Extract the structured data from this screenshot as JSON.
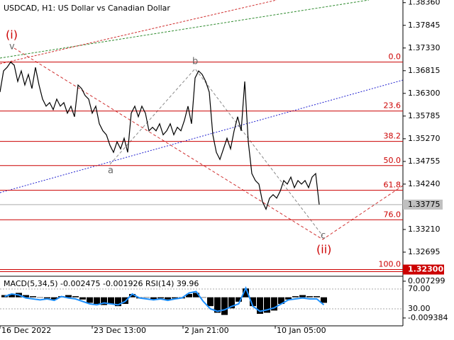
{
  "chart_data": [
    {
      "type": "line",
      "title": "USDCAD, H1:  US Dollar vs Canadian Dollar",
      "color": "#000000",
      "values": [
        1.3633,
        1.3681,
        1.3689,
        1.3701,
        1.3694,
        1.3657,
        1.3681,
        1.3649,
        1.3673,
        1.3641,
        1.3689,
        1.3649,
        1.3617,
        1.3601,
        1.3609,
        1.3593,
        1.3617,
        1.3601,
        1.3609,
        1.3585,
        1.3601,
        1.3577,
        1.3649,
        1.3641,
        1.3625,
        1.3617,
        1.3585,
        1.3601,
        1.3561,
        1.3545,
        1.3536,
        1.3512,
        1.3496,
        1.352,
        1.3504,
        1.3528,
        1.3496,
        1.3585,
        1.3601,
        1.3577,
        1.3601,
        1.3585,
        1.3545,
        1.3553,
        1.3545,
        1.3561,
        1.3536,
        1.3545,
        1.3561,
        1.3536,
        1.3553,
        1.3545,
        1.3569,
        1.3601,
        1.3561,
        1.3665,
        1.3681,
        1.3673,
        1.3657,
        1.3633,
        1.3536,
        1.3496,
        1.348,
        1.3504,
        1.3528,
        1.3504,
        1.3545,
        1.3577,
        1.3545,
        1.3657,
        1.352,
        1.3448,
        1.3432,
        1.3424,
        1.3384,
        1.3367,
        1.3392,
        1.34,
        1.3392,
        1.3408,
        1.3432,
        1.3424,
        1.344,
        1.3416,
        1.3432,
        1.3424,
        1.3432,
        1.3416,
        1.344,
        1.3448,
        1.33775
      ],
      "xlim": [
        0,
        113.6
      ],
      "ylim": [
        1.3218,
        1.3842
      ],
      "xticks": [
        {
          "value": 0,
          "label": "16 Dec 2022"
        },
        {
          "value": 26,
          "label": "23 Dec 13:00"
        },
        {
          "value": 51.6,
          "label": "2 Jan 21:00"
        },
        {
          "value": 77.6,
          "label": "10 Jan 05:00"
        }
      ],
      "yticks": [
        {
          "value": 1.3836,
          "label": "1.38360"
        },
        1.37845,
        {
          "value": 1.3733,
          "label": "1.37330"
        },
        1.36815,
        {
          "value": 1.363,
          "label": "1.36300"
        },
        1.35785,
        {
          "value": 1.3527,
          "label": "1.35270"
        },
        1.34755,
        {
          "value": 1.3424,
          "label": "1.34240"
        },
        {
          "value": 1.3321,
          "label": "1.33210"
        },
        1.32695
      ],
      "last_price": {
        "value": 1.33775,
        "label": "1.33775"
      },
      "level_marker": {
        "value": 1.323,
        "label": "1.32300"
      },
      "levels": [
        {
          "label": "0.0",
          "value": 1.3701
        },
        {
          "label": "23.6",
          "value": 1.359
        },
        {
          "label": "38.2",
          "value": 1.3521
        },
        {
          "label": "50.0",
          "value": 1.3466
        },
        {
          "label": "61.8",
          "value": 1.341
        },
        {
          "label": "76.0",
          "value": 1.3343
        },
        {
          "label": "100.0",
          "value": 1.323
        }
      ],
      "level_color": "#cc0000",
      "annotations": [
        "(i)",
        "v",
        "a",
        "b",
        "c",
        "(ii)"
      ]
    },
    {
      "type": "bar",
      "title": "MACD(5,34,5) -0.002475 -0.001926 RSI(14) 39.96",
      "color": "#000000",
      "values": [
        0.001,
        0.0015,
        0.002,
        0.001,
        0.0005,
        0,
        -0.0005,
        -0.001,
        0.0005,
        0.001,
        0.0005,
        -0.001,
        -0.0025,
        -0.003,
        -0.0035,
        -0.003,
        -0.004,
        -0.003,
        0.0015,
        -0.0005,
        0,
        -0.001,
        -0.0005,
        -0.001,
        -0.0005,
        -0.0005,
        0.0015,
        0.002,
        0,
        -0.004,
        -0.007,
        -0.008,
        -0.005,
        -0.002,
        0.004,
        -0.004,
        -0.0075,
        -0.007,
        -0.006,
        -0.003,
        -0.001,
        0.0005,
        0.001,
        0.0005,
        0.0005,
        -0.0025
      ],
      "rsi": [
        55,
        60,
        58,
        52,
        50,
        48,
        50,
        47,
        55,
        52,
        50,
        45,
        40,
        38,
        42,
        40,
        38,
        45,
        60,
        52,
        50,
        48,
        50,
        47,
        50,
        52,
        62,
        65,
        45,
        30,
        25,
        28,
        35,
        40,
        72,
        35,
        25,
        28,
        32,
        40,
        48,
        50,
        52,
        50,
        50,
        38
      ],
      "rsi_color": "#1e90ff",
      "ylim": [
        -0.0123,
        0.0089
      ],
      "y2lim": [
        -1.4,
        92.9
      ],
      "yticks": [
        0.007299,
        -0.009384
      ],
      "y2ticks": [
        {
          "value": 70,
          "label": "70.00"
        },
        {
          "value": 30,
          "label": "30.00"
        }
      ]
    }
  ]
}
